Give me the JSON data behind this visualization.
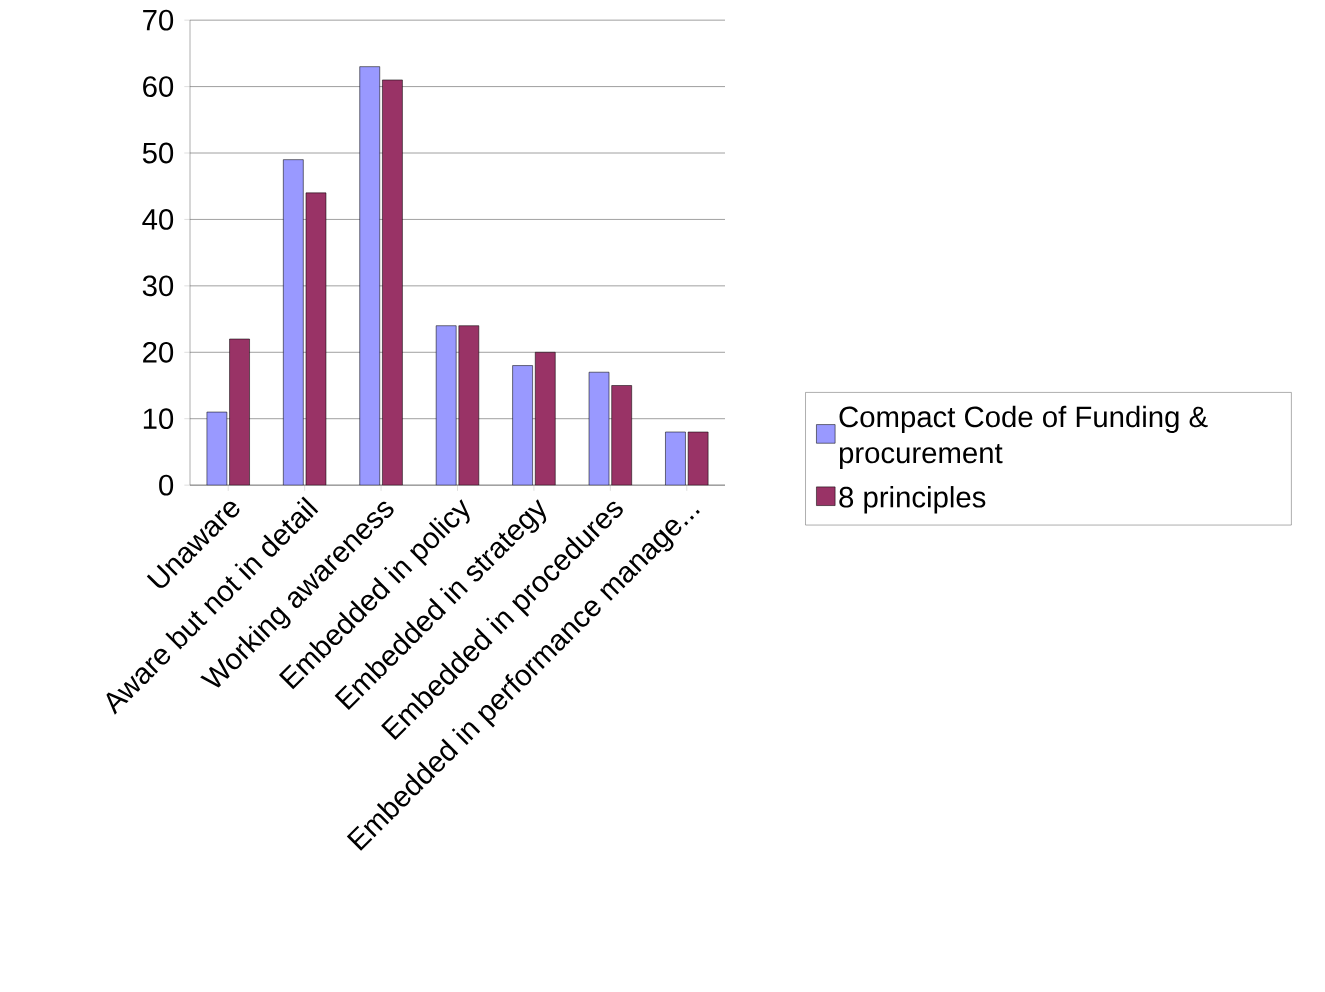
{
  "chart_data": {
    "type": "bar",
    "categories": [
      "Unaware",
      "Aware but not in detail",
      "Working awareness",
      "Embedded in policy",
      "Embedded in strategy",
      "Embedded in procedures",
      "Embedded in performance manage..."
    ],
    "series": [
      {
        "name": "Compact Code of Funding & procurement",
        "color": "#9999ff",
        "values": [
          11,
          49,
          63,
          24,
          18,
          17,
          8
        ]
      },
      {
        "name": "8 principles",
        "color": "#993366",
        "values": [
          22,
          44,
          61,
          24,
          20,
          15,
          8
        ]
      }
    ],
    "ylim": [
      0,
      70
    ],
    "yticks": [
      0,
      10,
      20,
      30,
      40,
      50,
      60,
      70
    ],
    "grid": "y",
    "legend": "right"
  }
}
